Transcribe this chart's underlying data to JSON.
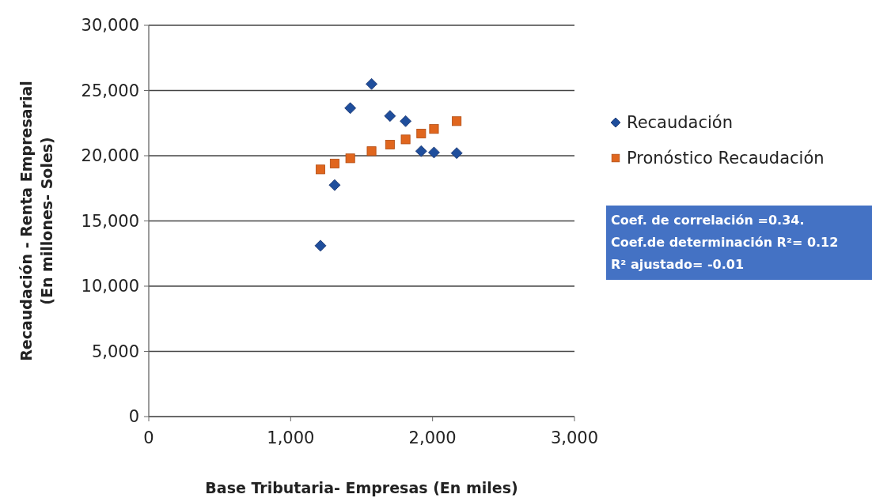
{
  "chart_data": {
    "type": "scatter",
    "xlabel": "Base Tributaria-  Empresas (En miles)",
    "ylabel": "Recaudación - Renta Empresarial\n(En millones- Soles)",
    "xlim": [
      0,
      3000
    ],
    "xticks": [
      {
        "value": 0,
        "label": "0"
      },
      {
        "value": 1000,
        "label": "1,000"
      },
      {
        "value": 2000,
        "label": "2,000"
      },
      {
        "value": 3000,
        "label": "3,000"
      }
    ],
    "ylim": [
      0,
      30000
    ],
    "yticks": [
      {
        "value": 0,
        "label": "0"
      },
      {
        "value": 5000,
        "label": "5,000"
      },
      {
        "value": 10000,
        "label": "10,000"
      },
      {
        "value": 15000,
        "label": "15,000"
      },
      {
        "value": 20000,
        "label": "20,000"
      },
      {
        "value": 25000,
        "label": "25,000"
      },
      {
        "value": 30000,
        "label": "30,000"
      }
    ],
    "grid": "y",
    "legend": "right",
    "series": [
      {
        "name": "Recaudación",
        "color": "#1f4e9c",
        "marker": "diamond",
        "x": [
          1210,
          1310,
          1420,
          1570,
          1700,
          1810,
          1920,
          2010,
          2170
        ],
        "values": [
          13100,
          17750,
          23650,
          25500,
          23050,
          22650,
          20350,
          20250,
          20200
        ]
      },
      {
        "name": "Pronóstico Recaudación",
        "color": "#e0661e",
        "marker": "square",
        "x": [
          1210,
          1310,
          1420,
          1570,
          1700,
          1810,
          1920,
          2010,
          2170
        ],
        "values": [
          18950,
          19400,
          19800,
          20350,
          20850,
          21250,
          21700,
          22050,
          22650
        ]
      }
    ],
    "annotations": [
      "Coef. de correlación  =0.34.\nCoef.de determinación R²=  0.12\nR² ajustado= -0.01"
    ]
  }
}
